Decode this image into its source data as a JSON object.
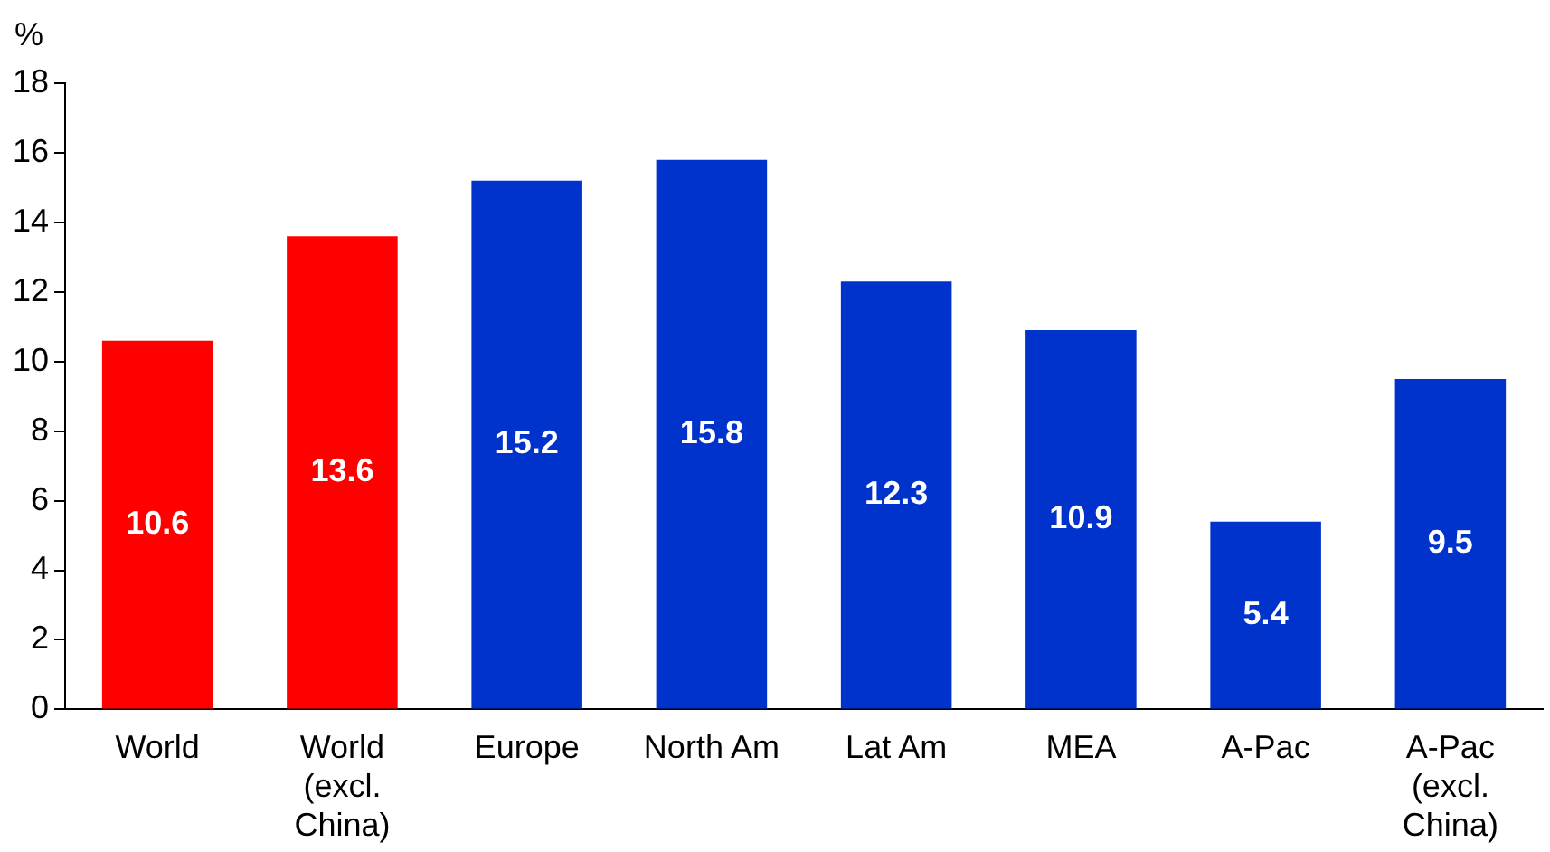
{
  "chart_data": {
    "type": "bar",
    "ylabel": "%",
    "categories": [
      "World",
      "World (excl. China)",
      "Europe",
      "North Am",
      "Lat Am",
      "MEA",
      "A-Pac",
      "A-Pac (excl. China)"
    ],
    "values": [
      10.6,
      13.6,
      15.2,
      15.8,
      12.3,
      10.9,
      5.4,
      9.5
    ],
    "colors": [
      "#ff0000",
      "#ff0000",
      "#0033cc",
      "#0033cc",
      "#0033cc",
      "#0033cc",
      "#0033cc",
      "#0033cc"
    ],
    "ylim": [
      0,
      18
    ],
    "yticks": [
      0,
      2,
      4,
      6,
      8,
      10,
      12,
      14,
      16,
      18
    ],
    "grid": false,
    "legend": false,
    "data_labels": true
  }
}
